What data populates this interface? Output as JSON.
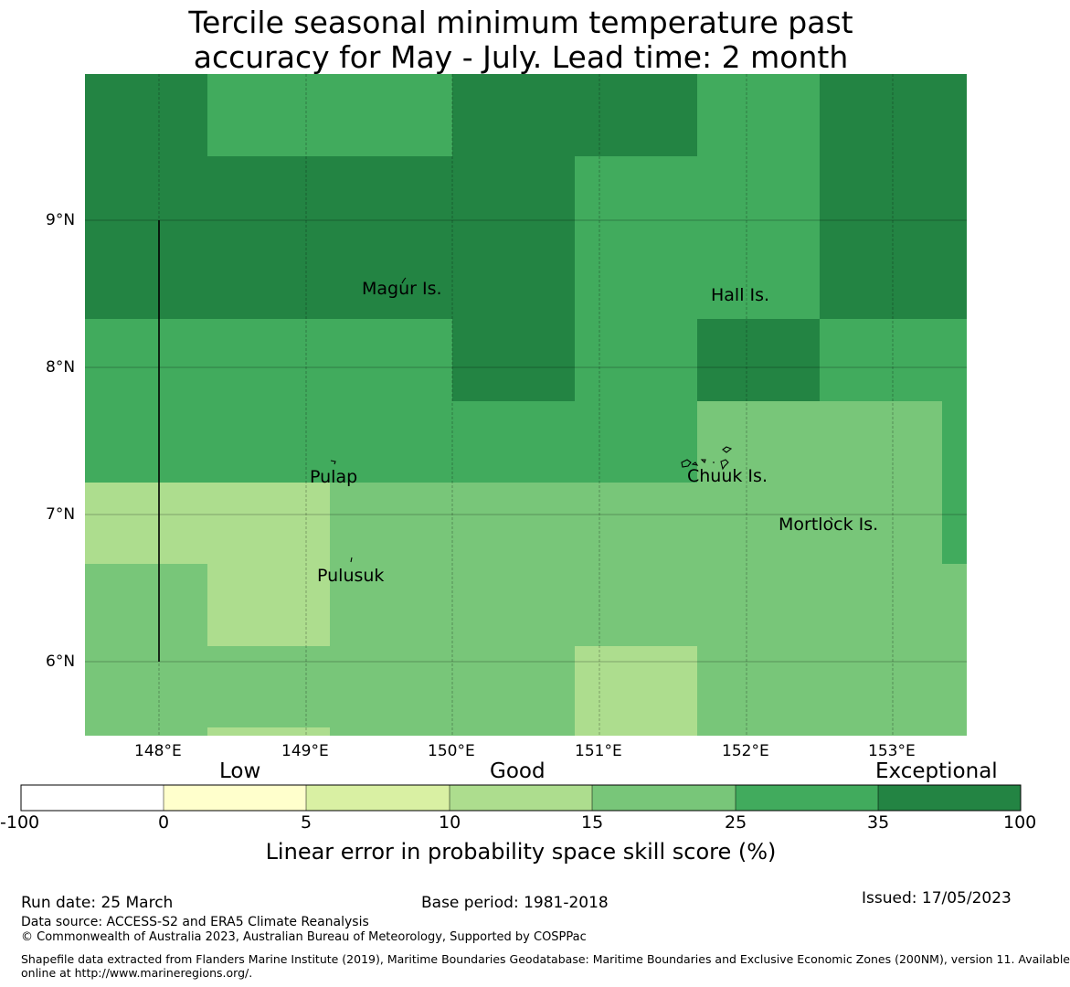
{
  "title": {
    "line1": "Tercile seasonal minimum temperature past",
    "line2": "accuracy for May - July. Lead time: 2 month"
  },
  "map": {
    "lat_labels": [
      "9°N",
      "8°N",
      "7°N",
      "6°N"
    ],
    "lon_labels": [
      "148°E",
      "149°E",
      "150°E",
      "151°E",
      "152°E",
      "153°E"
    ],
    "places": [
      {
        "name": "Magur Is."
      },
      {
        "name": "Hall Is."
      },
      {
        "name": "Pulap"
      },
      {
        "name": "Chuuk Is."
      },
      {
        "name": "Mortlock Is."
      },
      {
        "name": "Pulusuk"
      }
    ],
    "colors": {
      "c35_100": "#238443",
      "c25_35": "#41ab5d",
      "c15_25": "#78c679",
      "c10_15": "#addd8e",
      "c5_10": "#d9f0a3",
      "c0_5": "#ffffcc",
      "cneg": "#ffffff"
    }
  },
  "colorbar": {
    "categories": [
      "Low",
      "Good",
      "Exceptional"
    ],
    "ticks": [
      "-100",
      "0",
      "5",
      "10",
      "15",
      "25",
      "35",
      "100"
    ],
    "colors": [
      "#ffffff",
      "#ffffcc",
      "#d9f0a3",
      "#addd8e",
      "#78c679",
      "#41ab5d",
      "#238443"
    ],
    "label": "Linear error in probability space skill score (%)"
  },
  "footer": {
    "run_date": "Run date: 25 March",
    "base_period": "Base period: 1981-2018",
    "issued": "Issued: 17/05/2023",
    "data_source": "Data source: ACCESS-S2 and ERA5 Climate Reanalysis",
    "copyright": "© Commonwealth of Australia 2023, Australian Bureau of Meteorology, Supported by COSPPac",
    "shapefile_line1": "Shapefile data extracted from Flanders Marine Institute (2019), Maritime Boundaries Geodatabase: Maritime Boundaries and Exclusive Economic Zones (200NM), version 11. Available",
    "shapefile_line2": "online at http://www.marineregions.org/."
  }
}
